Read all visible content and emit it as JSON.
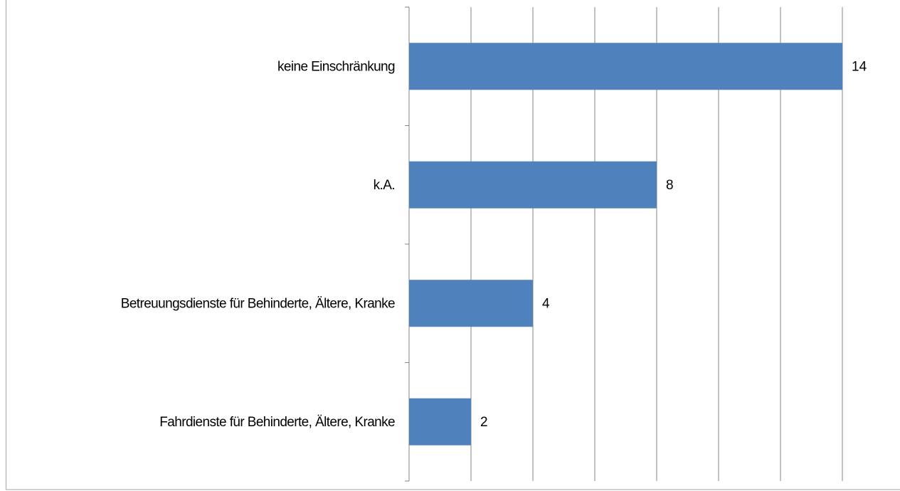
{
  "chart_data": {
    "type": "bar",
    "orientation": "horizontal",
    "categories": [
      "keine Einschränkung",
      "k.A.",
      "Betreuungsdienste für Behinderte, Ältere, Kranke",
      "Fahrdienste für Behinderte, Ältere, Kranke"
    ],
    "values": [
      14,
      8,
      4,
      2
    ],
    "color": "#4f81bd",
    "xlim": [
      0,
      16
    ],
    "xticks": [
      0,
      2,
      4,
      6,
      8,
      10,
      12,
      14
    ],
    "grid": true
  }
}
